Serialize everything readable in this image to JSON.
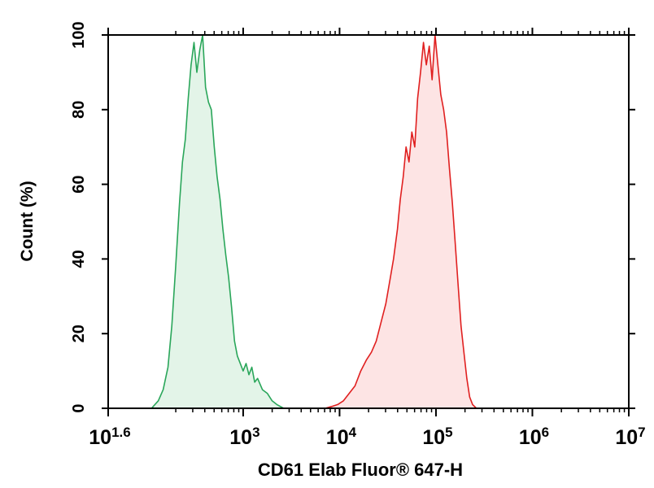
{
  "chart_data": {
    "type": "area",
    "title": "",
    "xlabel": "CD61 Elab Fluor® 647-H",
    "ylabel": "Count (%)",
    "x_scale": "log",
    "xlim_log10": [
      1.6,
      7
    ],
    "ylim": [
      0,
      100
    ],
    "grid": false,
    "legend": "none",
    "x_ticks": [
      {
        "base": "10",
        "exp": "1.6",
        "log10": 1.6
      },
      {
        "base": "10",
        "exp": "3",
        "log10": 3
      },
      {
        "base": "10",
        "exp": "4",
        "log10": 4
      },
      {
        "base": "10",
        "exp": "5",
        "log10": 5
      },
      {
        "base": "10",
        "exp": "6",
        "log10": 6
      },
      {
        "base": "10",
        "exp": "7",
        "log10": 7
      }
    ],
    "y_ticks": [
      "0",
      "20",
      "40",
      "60",
      "80",
      "100"
    ],
    "series": [
      {
        "color": "#2aa65a",
        "fill": "#e3f4e8",
        "points": [
          [
            2.05,
            0
          ],
          [
            2.12,
            2
          ],
          [
            2.17,
            5
          ],
          [
            2.22,
            11
          ],
          [
            2.26,
            22
          ],
          [
            2.3,
            38
          ],
          [
            2.34,
            55
          ],
          [
            2.37,
            66
          ],
          [
            2.4,
            72
          ],
          [
            2.43,
            83
          ],
          [
            2.46,
            92
          ],
          [
            2.49,
            98
          ],
          [
            2.52,
            90
          ],
          [
            2.55,
            96
          ],
          [
            2.58,
            100
          ],
          [
            2.61,
            86
          ],
          [
            2.64,
            82
          ],
          [
            2.67,
            80
          ],
          [
            2.7,
            70
          ],
          [
            2.73,
            62
          ],
          [
            2.76,
            56
          ],
          [
            2.79,
            48
          ],
          [
            2.82,
            41
          ],
          [
            2.85,
            35
          ],
          [
            2.88,
            27
          ],
          [
            2.91,
            18
          ],
          [
            2.94,
            14
          ],
          [
            2.97,
            12
          ],
          [
            3.0,
            10
          ],
          [
            3.03,
            12
          ],
          [
            3.06,
            9
          ],
          [
            3.09,
            11
          ],
          [
            3.12,
            7
          ],
          [
            3.15,
            8
          ],
          [
            3.2,
            5
          ],
          [
            3.25,
            4
          ],
          [
            3.3,
            2
          ],
          [
            3.35,
            1
          ],
          [
            3.42,
            0
          ],
          [
            3.55,
            0
          ],
          [
            3.62,
            0
          ]
        ]
      },
      {
        "color": "#e02020",
        "fill": "#fde4e4",
        "points": [
          [
            3.78,
            0
          ],
          [
            3.85,
            0
          ],
          [
            3.92,
            0.5
          ],
          [
            3.98,
            1
          ],
          [
            4.04,
            2
          ],
          [
            4.1,
            4
          ],
          [
            4.16,
            6
          ],
          [
            4.22,
            10
          ],
          [
            4.28,
            13
          ],
          [
            4.33,
            15
          ],
          [
            4.38,
            18
          ],
          [
            4.43,
            23
          ],
          [
            4.48,
            28
          ],
          [
            4.52,
            34
          ],
          [
            4.56,
            40
          ],
          [
            4.6,
            48
          ],
          [
            4.63,
            56
          ],
          [
            4.66,
            62
          ],
          [
            4.69,
            70
          ],
          [
            4.72,
            66
          ],
          [
            4.75,
            74
          ],
          [
            4.78,
            70
          ],
          [
            4.81,
            83
          ],
          [
            4.84,
            90
          ],
          [
            4.87,
            98
          ],
          [
            4.9,
            92
          ],
          [
            4.93,
            97
          ],
          [
            4.96,
            88
          ],
          [
            4.99,
            100
          ],
          [
            5.02,
            92
          ],
          [
            5.05,
            84
          ],
          [
            5.08,
            80
          ],
          [
            5.11,
            74
          ],
          [
            5.14,
            64
          ],
          [
            5.17,
            55
          ],
          [
            5.2,
            44
          ],
          [
            5.23,
            33
          ],
          [
            5.26,
            22
          ],
          [
            5.29,
            15
          ],
          [
            5.32,
            8
          ],
          [
            5.35,
            3
          ],
          [
            5.38,
            1
          ],
          [
            5.42,
            0
          ]
        ]
      }
    ]
  }
}
